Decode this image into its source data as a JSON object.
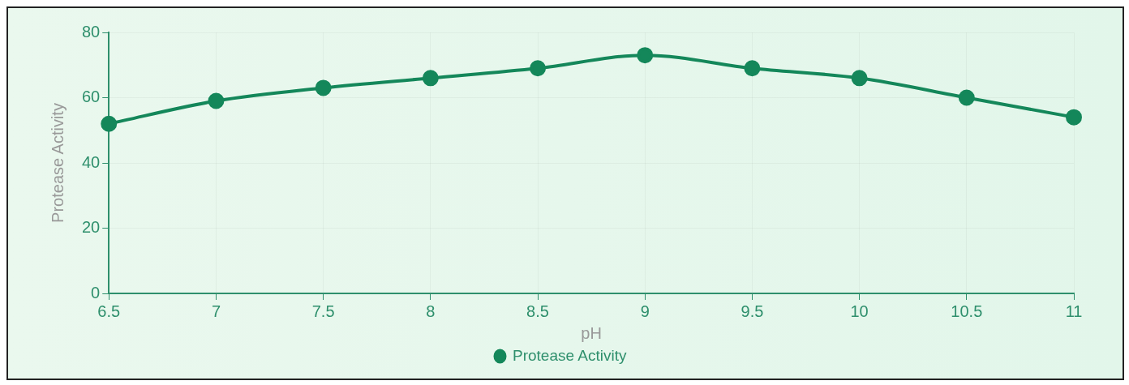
{
  "chart_data": {
    "type": "line",
    "xlabel": "pH",
    "ylabel": "Protease Activity",
    "categories": [
      "6.5",
      "7",
      "7.5",
      "8",
      "8.5",
      "9",
      "9.5",
      "10",
      "10.5",
      "11"
    ],
    "series": [
      {
        "name": "Protease Activity",
        "color": "#14875a",
        "values": [
          52,
          59,
          63,
          66,
          69,
          73,
          69,
          66,
          60,
          54
        ]
      }
    ],
    "ylim": [
      0,
      80
    ],
    "yticks": [
      0,
      20,
      40,
      60,
      80
    ],
    "grid": true,
    "legend": "bottom",
    "marker": "circle",
    "line_style": "solid"
  }
}
